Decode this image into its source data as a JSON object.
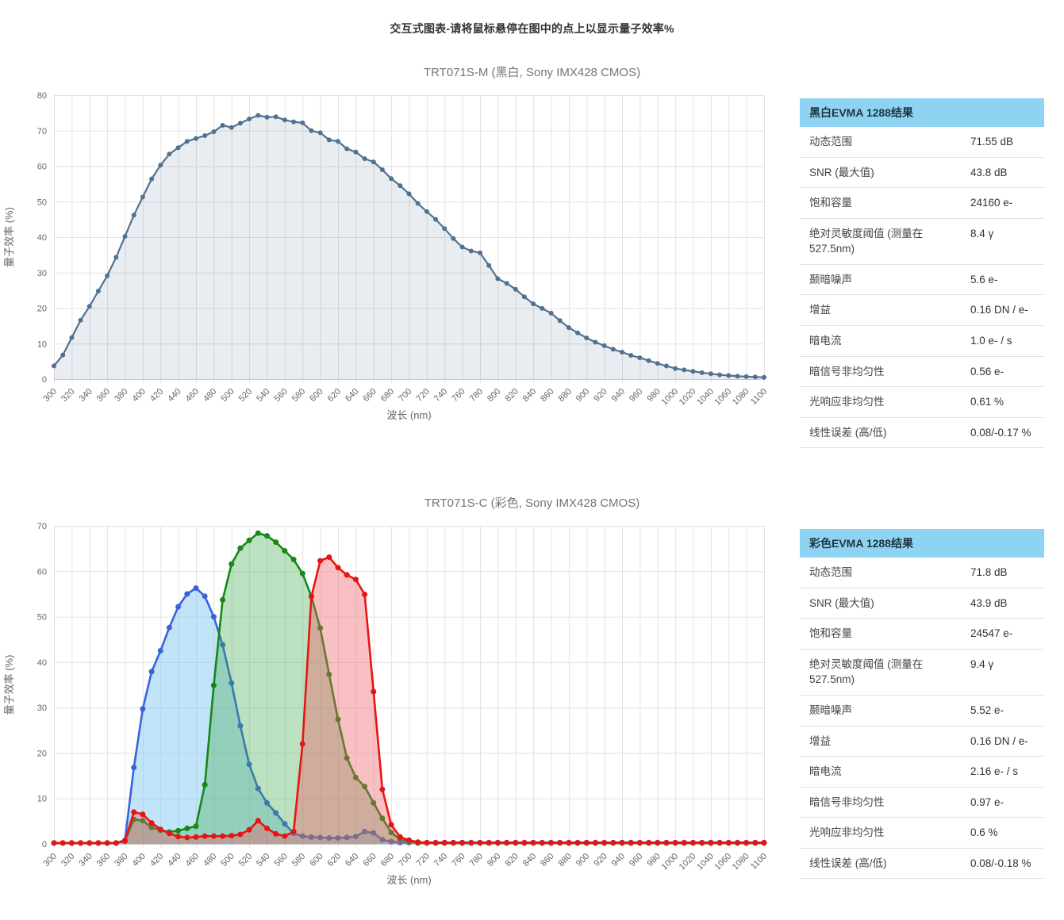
{
  "page": {
    "title": "交互式图表-请将鼠标悬停在图中的点上以显示量子效率%"
  },
  "theme": {
    "table_header_bg": "#8ED3F2",
    "table_header_text": "#1F3440",
    "grid_color": "#E3E3E3",
    "axis_color": "#C9C9C9",
    "tick_text_color": "#666666",
    "chart_title_color": "#757575"
  },
  "chart_data": [
    {
      "type": "area",
      "title": "TRT071S-M (黑白, Sony IMX428 CMOS)",
      "xlabel": "波长 (nm)",
      "ylabel": "量子效率 (%)",
      "xlim": [
        300,
        1100
      ],
      "ylim": [
        0,
        80
      ],
      "x_tick_step": 20,
      "y_tick_step": 10,
      "x_start": 300,
      "x_step": 10,
      "grid": true,
      "legend": "none",
      "series": [
        {
          "name": "mono-qe",
          "color": "#52718F",
          "fill": "rgba(82,113,143,0.13)",
          "values": [
            3.7,
            6.8,
            11.7,
            16.6,
            20.5,
            24.8,
            29.1,
            34.3,
            40.2,
            46.2,
            51.3,
            56.4,
            60.3,
            63.4,
            65.2,
            67.0,
            67.8,
            68.6,
            69.7,
            71.5,
            70.9,
            72.1,
            73.3,
            74.3,
            73.8,
            73.9,
            73.0,
            72.5,
            72.2,
            70.0,
            69.4,
            67.4,
            67.0,
            64.9,
            64.0,
            62.1,
            61.2,
            59.0,
            56.5,
            54.5,
            52.2,
            49.5,
            47.2,
            45.0,
            42.4,
            39.6,
            37.2,
            36.1,
            35.6,
            32.0,
            28.3,
            27.0,
            25.3,
            23.2,
            21.2,
            19.9,
            18.6,
            16.5,
            14.5,
            13.0,
            11.6,
            10.4,
            9.4,
            8.4,
            7.6,
            6.7,
            6.0,
            5.2,
            4.4,
            3.7,
            3.0,
            2.6,
            2.2,
            1.8,
            1.5,
            1.2,
            1.0,
            0.8,
            0.7,
            0.6,
            0.5
          ]
        }
      ]
    },
    {
      "type": "area",
      "title": "TRT071S-C (彩色, Sony IMX428 CMOS)",
      "xlabel": "波长 (nm)",
      "ylabel": "量子效率 (%)",
      "xlim": [
        300,
        1100
      ],
      "ylim": [
        0,
        70
      ],
      "x_tick_step": 20,
      "y_tick_step": 10,
      "x_start": 300,
      "x_step": 10,
      "grid": true,
      "legend": "none",
      "series": [
        {
          "name": "blue-channel",
          "color": "#3A62DD",
          "fill": "rgba(120,195,240,0.45)",
          "values": [
            0.2,
            0.2,
            0.2,
            0.2,
            0.2,
            0.2,
            0.2,
            0.2,
            0.8,
            16.8,
            29.7,
            37.9,
            42.5,
            47.6,
            52.2,
            55.0,
            56.3,
            54.5,
            50.0,
            43.8,
            35.4,
            26.0,
            17.5,
            12.2,
            9.0,
            6.8,
            4.4,
            2.3,
            1.7,
            1.5,
            1.4,
            1.3,
            1.3,
            1.4,
            1.6,
            2.7,
            2.4,
            0.9,
            0.5,
            0.3,
            0.3,
            0.3,
            0.3,
            0.3,
            0.3,
            0.3,
            0.3,
            0.3,
            0.3,
            0.3,
            0.3,
            0.3,
            0.3,
            0.3,
            0.3,
            0.3,
            0.3,
            0.3,
            0.3,
            0.3,
            0.3,
            0.3,
            0.3,
            0.3,
            0.3,
            0.3,
            0.3,
            0.3,
            0.3,
            0.3,
            0.3,
            0.3,
            0.3,
            0.3,
            0.3,
            0.3,
            0.3,
            0.3,
            0.3,
            0.3,
            0.3
          ]
        },
        {
          "name": "green-channel",
          "color": "#168816",
          "fill": "rgba(60,170,75,0.35)",
          "values": [
            0.2,
            0.2,
            0.2,
            0.2,
            0.2,
            0.2,
            0.2,
            0.2,
            0.6,
            5.4,
            5.1,
            3.6,
            3.0,
            2.6,
            2.9,
            3.4,
            3.9,
            13.0,
            34.9,
            53.7,
            61.6,
            65.1,
            66.8,
            68.4,
            67.8,
            66.4,
            64.5,
            62.6,
            59.5,
            54.5,
            47.5,
            37.3,
            27.4,
            18.9,
            14.6,
            12.6,
            9.0,
            5.6,
            2.5,
            1.0,
            0.5,
            0.2,
            0.2,
            0.2,
            0.2,
            0.2,
            0.2,
            0.2,
            0.2,
            0.2,
            0.2,
            0.2,
            0.2,
            0.2,
            0.2,
            0.2,
            0.2,
            0.2,
            0.2,
            0.2,
            0.2,
            0.2,
            0.2,
            0.2,
            0.2,
            0.2,
            0.2,
            0.2,
            0.2,
            0.2,
            0.2,
            0.2,
            0.2,
            0.2,
            0.2,
            0.2,
            0.2,
            0.2,
            0.2,
            0.2,
            0.2
          ]
        },
        {
          "name": "red-channel",
          "color": "#E81414",
          "fill": "rgba(238,90,100,0.38)",
          "values": [
            0.2,
            0.2,
            0.2,
            0.2,
            0.2,
            0.2,
            0.2,
            0.2,
            0.7,
            7.0,
            6.5,
            4.6,
            3.2,
            2.3,
            1.6,
            1.4,
            1.5,
            1.7,
            1.7,
            1.7,
            1.8,
            2.1,
            3.1,
            5.1,
            3.4,
            2.2,
            1.7,
            2.7,
            22.0,
            54.4,
            62.3,
            63.1,
            60.8,
            59.2,
            58.2,
            54.9,
            33.5,
            12.0,
            4.2,
            1.5,
            0.8,
            0.4,
            0.25,
            0.25,
            0.25,
            0.25,
            0.25,
            0.25,
            0.25,
            0.25,
            0.25,
            0.25,
            0.25,
            0.25,
            0.25,
            0.25,
            0.25,
            0.25,
            0.25,
            0.25,
            0.25,
            0.25,
            0.25,
            0.25,
            0.25,
            0.25,
            0.25,
            0.25,
            0.25,
            0.25,
            0.25,
            0.25,
            0.25,
            0.25,
            0.25,
            0.25,
            0.25,
            0.25,
            0.25,
            0.25,
            0.25
          ]
        }
      ]
    }
  ],
  "tables": [
    {
      "header": "黑白EVMA 1288结果",
      "rows": [
        {
          "label": "动态范围",
          "value": "71.55 dB"
        },
        {
          "label": "SNR (最大值)",
          "value": "43.8 dB"
        },
        {
          "label": "饱和容量",
          "value": "24160 e-"
        },
        {
          "label": "绝对灵敏度阈值 (测量在 527.5nm)",
          "value": "8.4 γ"
        },
        {
          "label": "颞暗噪声",
          "value": "5.6 e-"
        },
        {
          "label": "增益",
          "value": "0.16 DN / e-"
        },
        {
          "label": "暗电流",
          "value": "1.0 e- / s"
        },
        {
          "label": "暗信号非均匀性",
          "value": "0.56 e-"
        },
        {
          "label": "光响应非均匀性",
          "value": "0.61 %"
        },
        {
          "label": "线性误差 (高/低)",
          "value": "0.08/-0.17 %"
        }
      ]
    },
    {
      "header": "彩色EVMA 1288结果",
      "rows": [
        {
          "label": "动态范围",
          "value": "71.8 dB"
        },
        {
          "label": "SNR (最大值)",
          "value": "43.9 dB"
        },
        {
          "label": "饱和容量",
          "value": "24547 e-"
        },
        {
          "label": "绝对灵敏度阈值 (测量在 527.5nm)",
          "value": "9.4 γ"
        },
        {
          "label": "颞暗噪声",
          "value": "5.52 e-"
        },
        {
          "label": "增益",
          "value": "0.16 DN / e-"
        },
        {
          "label": "暗电流",
          "value": "2.16 e- / s"
        },
        {
          "label": "暗信号非均匀性",
          "value": "0.97 e-"
        },
        {
          "label": "光响应非均匀性",
          "value": "0.6 %"
        },
        {
          "label": "线性误差 (高/低)",
          "value": "0.08/-0.18 %"
        }
      ]
    }
  ]
}
